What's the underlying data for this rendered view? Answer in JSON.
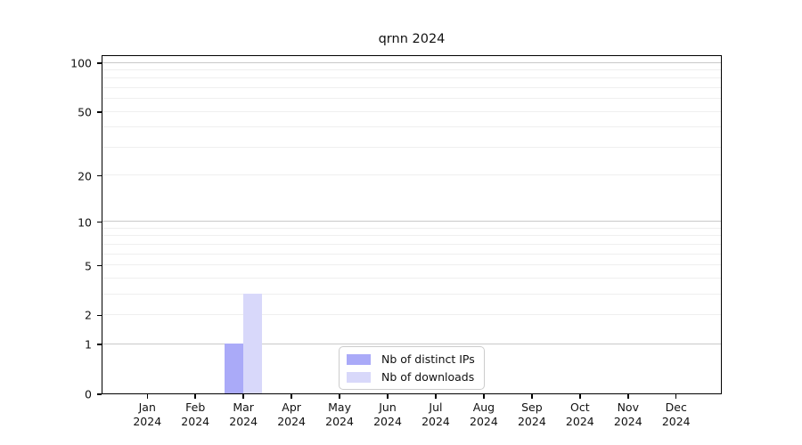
{
  "figure": {
    "background": "#ffffff"
  },
  "chart_data": {
    "type": "bar",
    "title": "qrnn 2024",
    "categories": [
      "Jan 2024",
      "Feb 2024",
      "Mar 2024",
      "Apr 2024",
      "May 2024",
      "Jun 2024",
      "Jul 2024",
      "Aug 2024",
      "Sep 2024",
      "Oct 2024",
      "Nov 2024",
      "Dec 2024"
    ],
    "x_months": [
      "Jan",
      "Feb",
      "Mar",
      "Apr",
      "May",
      "Jun",
      "Jul",
      "Aug",
      "Sep",
      "Oct",
      "Nov",
      "Dec"
    ],
    "x_year": "2024",
    "series": [
      {
        "name": "Nb of distinct IPs",
        "color": "#aaaaf8",
        "values": [
          0,
          0,
          1,
          0,
          0,
          0,
          0,
          0,
          0,
          0,
          0,
          0
        ]
      },
      {
        "name": "Nb of downloads",
        "color": "#d8d8fa",
        "values": [
          0,
          0,
          3,
          0,
          0,
          0,
          0,
          0,
          0,
          0,
          0,
          0
        ]
      }
    ],
    "yscale": "log1p",
    "ylim": [
      0,
      112
    ],
    "y_ticks": [
      0,
      1,
      2,
      5,
      10,
      20,
      50,
      100
    ],
    "y_minor_gridlines": [
      2,
      3,
      4,
      5,
      6,
      7,
      8,
      9,
      20,
      30,
      40,
      50,
      60,
      70,
      80,
      90
    ],
    "y_major_gridlines": [
      1,
      10,
      100
    ],
    "grid": "horizontal",
    "legend_position": "lower center",
    "colors": {
      "minor_grid": "#efefef",
      "major_grid": "#c9c9c9",
      "spine": "#000000",
      "text": "#111111"
    }
  }
}
